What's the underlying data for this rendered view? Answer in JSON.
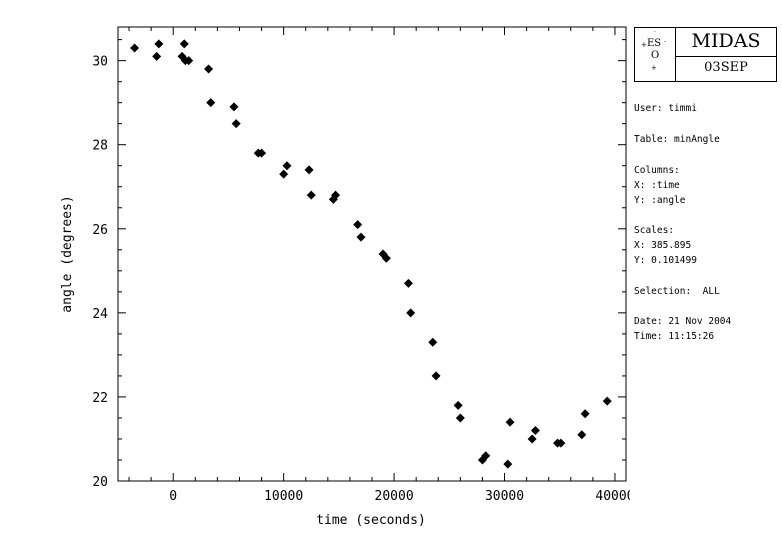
{
  "chart_data": {
    "type": "scatter",
    "title": "",
    "xlabel": "time (seconds)",
    "ylabel": "angle (degrees)",
    "xlim": [
      -5000,
      41000
    ],
    "ylim": [
      20,
      30.8
    ],
    "x_ticks": [
      0,
      10000,
      20000,
      30000,
      40000
    ],
    "y_ticks": [
      20,
      22,
      24,
      26,
      28,
      30
    ],
    "x_tick_labels": [
      "0",
      "10000",
      "20000",
      "30000",
      "40000"
    ],
    "y_tick_labels": [
      "20",
      "22",
      "24",
      "26",
      "28",
      "30"
    ],
    "grid": false,
    "marker": "diamond",
    "marker_color": "#000000",
    "points": [
      [
        -3500,
        30.3
      ],
      [
        -1500,
        30.1
      ],
      [
        -1300,
        30.4
      ],
      [
        800,
        30.1
      ],
      [
        1000,
        30.4
      ],
      [
        1100,
        30.0
      ],
      [
        1400,
        30.0
      ],
      [
        3200,
        29.8
      ],
      [
        3400,
        29.0
      ],
      [
        5500,
        28.9
      ],
      [
        5700,
        28.5
      ],
      [
        7700,
        27.8
      ],
      [
        8000,
        27.8
      ],
      [
        10000,
        27.3
      ],
      [
        10300,
        27.5
      ],
      [
        12300,
        27.4
      ],
      [
        12500,
        26.8
      ],
      [
        14500,
        26.7
      ],
      [
        14700,
        26.8
      ],
      [
        16700,
        26.1
      ],
      [
        17000,
        25.8
      ],
      [
        19000,
        25.4
      ],
      [
        19300,
        25.3
      ],
      [
        21300,
        24.7
      ],
      [
        21500,
        24.0
      ],
      [
        23500,
        23.3
      ],
      [
        23800,
        22.5
      ],
      [
        25800,
        21.8
      ],
      [
        26000,
        21.5
      ],
      [
        28000,
        20.5
      ],
      [
        28300,
        20.6
      ],
      [
        30300,
        20.4
      ],
      [
        30500,
        21.4
      ],
      [
        32500,
        21.0
      ],
      [
        32800,
        21.2
      ],
      [
        34800,
        20.9
      ],
      [
        35100,
        20.9
      ],
      [
        37000,
        21.1
      ],
      [
        37300,
        21.6
      ],
      [
        39300,
        21.9
      ]
    ]
  },
  "logo": {
    "eso_letters": "ES",
    "eso_o": "O",
    "title": "MIDAS",
    "date": "03SEP"
  },
  "info": {
    "user": "User: timmi",
    "table": "Table: minAngle",
    "columns_header": "Columns:",
    "columns_x": "X: :time",
    "columns_y": "Y: :angle",
    "scales_header": "Scales:",
    "scales_x": "X: 385.895",
    "scales_y": "Y: 0.101499",
    "selection": "Selection:  ALL",
    "date": "Date: 21 Nov 2004",
    "time": "Time: 11:15:26"
  }
}
